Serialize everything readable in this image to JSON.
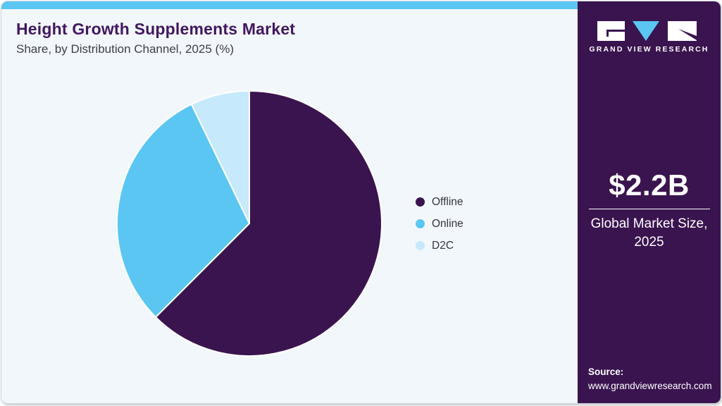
{
  "header": {
    "title": "Height Growth Supplements Market",
    "subtitle": "Share, by Distribution Channel, 2025 (%)"
  },
  "chart_data": {
    "type": "pie",
    "title": "Height Growth Supplements Market Share, by Distribution Channel, 2025 (%)",
    "categories": [
      "Offline",
      "Online",
      "D2C"
    ],
    "values": [
      62.5,
      30.3,
      7.2
    ],
    "unit": "%",
    "colors": [
      "#3A144F",
      "#5BC6F2",
      "#C6E9FB"
    ],
    "legend_position": "right",
    "start_angle_deg": 0,
    "direction": "clockwise"
  },
  "sidebar": {
    "brand": "GRAND VIEW RESEARCH",
    "market_size_value": "$2.2B",
    "market_size_label": "Global Market Size, 2025",
    "source_label": "Source:",
    "source_url": "www.grandviewresearch.com"
  },
  "theme": {
    "accent_purple": "#3A144F",
    "accent_blue": "#5BC6F2",
    "accent_light_blue": "#C6E9FB",
    "title_color": "#42175F",
    "card_bg": "#F2F7FB",
    "topbar_color": "#5BC6F2"
  }
}
